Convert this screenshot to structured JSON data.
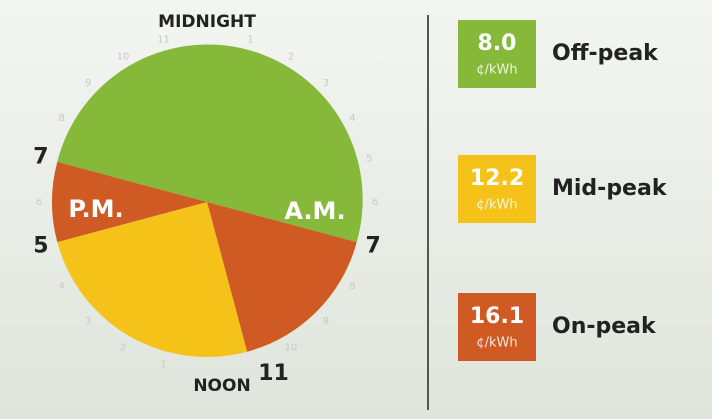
{
  "clock": {
    "top_label": "MIDNIGHT",
    "noon_label": "NOON",
    "am_label": "A.M.",
    "pm_label": "P.M.",
    "hour_labels": [
      null,
      "1",
      "2",
      "3",
      "4",
      "5",
      "6",
      null,
      "8",
      "9",
      "10",
      null,
      null,
      "1",
      "2",
      "3",
      "4",
      null,
      "6",
      null,
      "8",
      "9",
      "10",
      "11"
    ],
    "big_labels": [
      null,
      null,
      null,
      null,
      null,
      null,
      null,
      "7",
      null,
      null,
      null,
      "11",
      null,
      null,
      null,
      null,
      null,
      "5",
      null,
      "7",
      null,
      null,
      null,
      null
    ]
  },
  "legend": [
    {
      "price": "8.0",
      "unit": "¢/kWh",
      "name": "Off-peak"
    },
    {
      "price": "12.2",
      "unit": "¢/kWh",
      "name": "Mid-peak"
    },
    {
      "price": "16.1",
      "unit": "¢/kWh",
      "name": "On-peak"
    }
  ]
}
